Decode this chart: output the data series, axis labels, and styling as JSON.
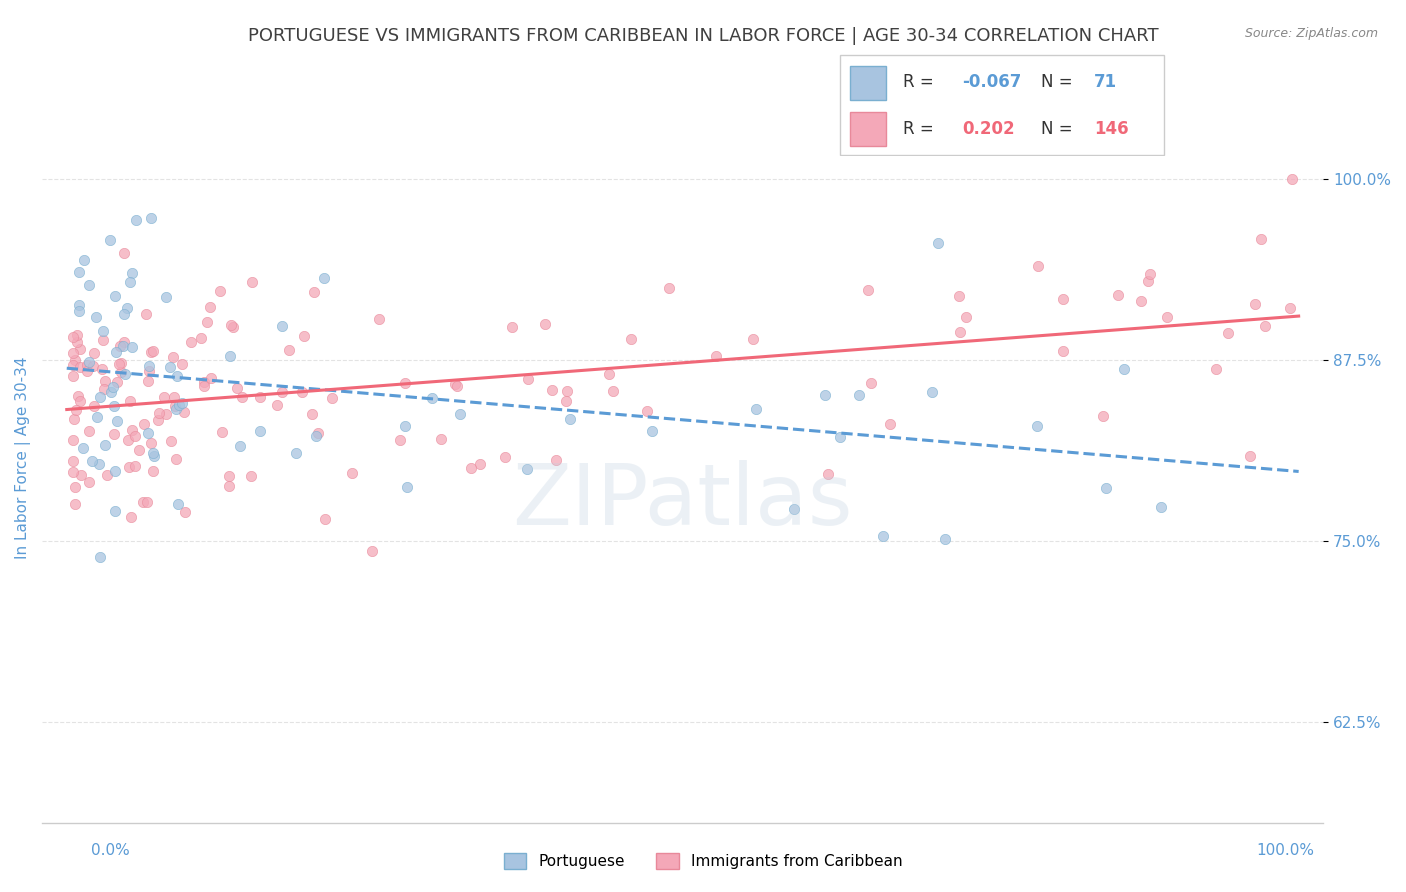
{
  "title": "PORTUGUESE VS IMMIGRANTS FROM CARIBBEAN IN LABOR FORCE | AGE 30-34 CORRELATION CHART",
  "source": "Source: ZipAtlas.com",
  "ylabel": "In Labor Force | Age 30-34",
  "legend_r_blue": "-0.067",
  "legend_n_blue": "71",
  "legend_r_pink": "0.202",
  "legend_n_pink": "146",
  "blue_color": "#a8c4e0",
  "pink_color": "#f4a8b8",
  "blue_line_color": "#5b9bd5",
  "pink_line_color": "#f06878",
  "title_color": "#404040",
  "axis_label_color": "#5b9bd5",
  "watermark_text": "ZIPatlas"
}
